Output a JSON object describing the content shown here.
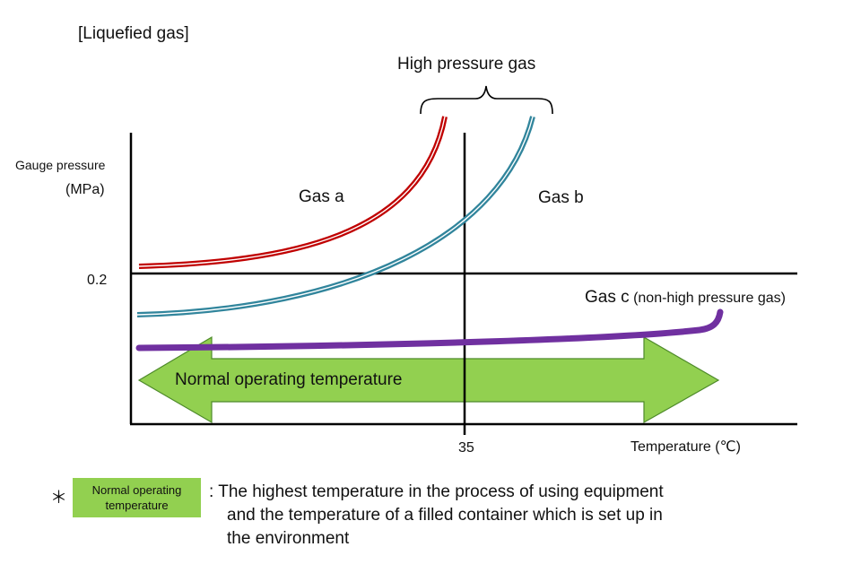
{
  "header_label": "[Liquefied gas]",
  "brace_label": "High pressure gas",
  "y_axis": {
    "label": "Gauge pressure",
    "unit": "(MPa)",
    "tick": "0.2"
  },
  "x_axis": {
    "label": "Temperature (℃)",
    "tick": "35"
  },
  "gases": {
    "a": {
      "label": "Gas a",
      "color": "#c00000"
    },
    "b": {
      "label": "Gas b",
      "color": "#31859c"
    },
    "c": {
      "label": "Gas c",
      "note": "(non-high pressure gas)",
      "color": "#7030a0"
    }
  },
  "arrow": {
    "label": "Normal operating temperature",
    "color": "#92d050"
  },
  "footnote": {
    "marker": "＊",
    "legend_line1": "Normal operating",
    "legend_line2": "temperature",
    "line1": ": The highest temperature in the process of using equipment",
    "line2": "and the temperature of a filled container which is set up in",
    "line3": "the environment"
  }
}
